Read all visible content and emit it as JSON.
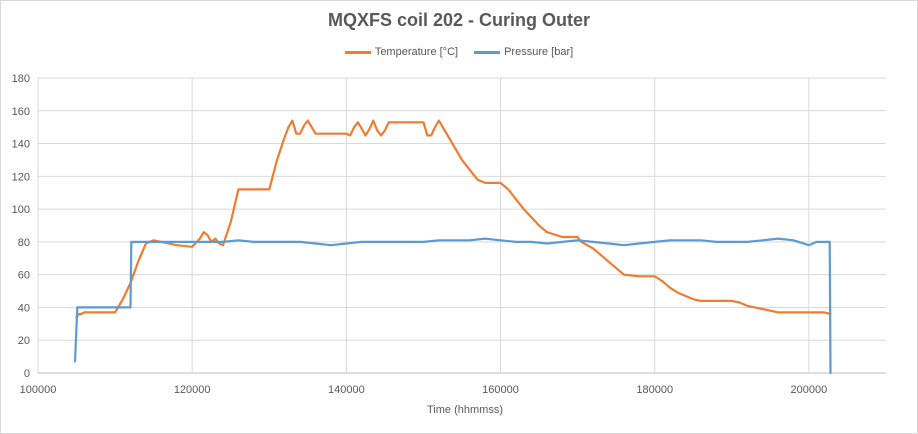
{
  "chart_data": {
    "type": "line",
    "title": "MQXFS coil 202 - Curing Outer",
    "xlabel": "Time (hhmmss)",
    "ylabel": "",
    "xlim": [
      100000,
      210000
    ],
    "ylim": [
      0,
      180
    ],
    "xticks": [
      "100000",
      "120000",
      "140000",
      "160000",
      "180000",
      "200000"
    ],
    "yticks": [
      "0",
      "20",
      "40",
      "60",
      "80",
      "100",
      "120",
      "140",
      "160",
      "180"
    ],
    "grid": "horizontal",
    "legend": "top-center",
    "series": [
      {
        "name": "Temperature [°C]",
        "color": "#ED7D31",
        "x": [
          105000,
          105300,
          105600,
          106000,
          108000,
          110000,
          111000,
          112000,
          113000,
          114000,
          115000,
          116000,
          118000,
          120000,
          121000,
          121500,
          122000,
          122500,
          123000,
          123500,
          124000,
          125000,
          126000,
          128000,
          130000,
          131000,
          132000,
          132500,
          133000,
          133500,
          134000,
          134500,
          135000,
          135500,
          136000,
          138000,
          140000,
          140500,
          141000,
          141500,
          142000,
          142500,
          143000,
          143500,
          144000,
          144500,
          145000,
          145500,
          146000,
          148000,
          150000,
          150500,
          151000,
          151500,
          152000,
          152500,
          153000,
          154000,
          155000,
          156000,
          157000,
          158000,
          160000,
          161000,
          162000,
          163000,
          164000,
          165000,
          166000,
          168000,
          170000,
          170500,
          172000,
          174000,
          176000,
          178000,
          180000,
          181000,
          182000,
          183000,
          184000,
          185000,
          186000,
          188000,
          190000,
          191000,
          192000,
          193000,
          194000,
          195000,
          196000,
          198000,
          200000,
          201000,
          202000,
          202800
        ],
        "values": [
          34,
          36,
          36,
          37,
          37,
          37,
          45,
          55,
          68,
          79,
          81,
          80,
          78,
          77,
          82,
          86,
          84,
          80,
          82,
          79,
          78,
          92,
          112,
          112,
          112,
          130,
          144,
          150,
          154,
          146,
          146,
          151,
          154,
          150,
          146,
          146,
          146,
          145,
          150,
          153,
          149,
          145,
          149,
          154,
          148,
          145,
          148,
          153,
          153,
          153,
          153,
          145,
          145,
          150,
          154,
          150,
          146,
          138,
          130,
          124,
          118,
          116,
          116,
          112,
          106,
          100,
          95,
          90,
          86,
          83,
          83,
          80,
          76,
          68,
          60,
          59,
          59,
          56,
          52,
          49,
          47,
          45,
          44,
          44,
          44,
          43,
          41,
          40,
          39,
          38,
          37,
          37,
          37,
          37,
          37,
          36
        ]
      },
      {
        "name": "Pressure [bar]",
        "color": "#5B9BD5",
        "x": [
          104800,
          105000,
          105100,
          105200,
          107000,
          109000,
          111000,
          112000,
          112100,
          114000,
          116000,
          118000,
          120000,
          122000,
          124000,
          126000,
          128000,
          130000,
          132000,
          134000,
          136000,
          138000,
          140000,
          142000,
          144000,
          146000,
          148000,
          150000,
          152000,
          154000,
          156000,
          158000,
          160000,
          162000,
          164000,
          166000,
          168000,
          170000,
          172000,
          174000,
          176000,
          178000,
          180000,
          182000,
          184000,
          186000,
          188000,
          190000,
          192000,
          194000,
          196000,
          198000,
          200000,
          201000,
          202000,
          202700,
          202800
        ],
        "values": [
          7,
          28,
          40,
          40,
          40,
          40,
          40,
          40,
          80,
          80,
          80,
          80,
          80,
          80,
          80,
          81,
          80,
          80,
          80,
          80,
          79,
          78,
          79,
          80,
          80,
          80,
          80,
          80,
          81,
          81,
          81,
          82,
          81,
          80,
          80,
          79,
          80,
          81,
          80,
          79,
          78,
          79,
          80,
          81,
          81,
          81,
          80,
          80,
          80,
          81,
          82,
          81,
          78,
          80,
          80,
          80,
          0
        ]
      }
    ]
  }
}
